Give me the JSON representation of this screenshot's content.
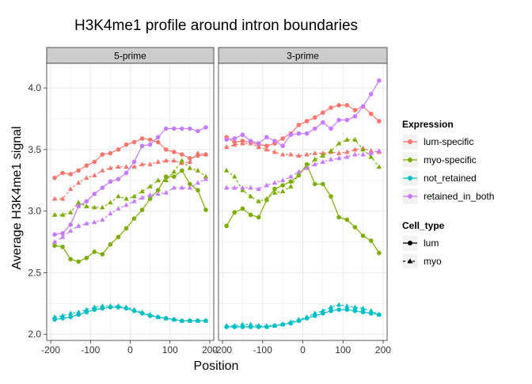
{
  "chart_data": {
    "type": "line",
    "title": "H3K4me1 profile around intron boundaries",
    "xlabel": "Position",
    "ylabel": "Average H3K4me1 signal",
    "x_range": [
      -210,
      210
    ],
    "y_range": [
      1.95,
      4.2
    ],
    "x_ticks": [
      -200,
      -100,
      0,
      100,
      200
    ],
    "x_tick_labels": [
      "-200",
      "-100",
      "0",
      "100",
      "200"
    ],
    "y_ticks": [
      2.0,
      2.5,
      3.0,
      3.5,
      4.0
    ],
    "y_tick_labels": [
      "2.0",
      "2.5",
      "3.0",
      "3.5",
      "4.0"
    ],
    "x": [
      -190,
      -170,
      -150,
      -130,
      -110,
      -90,
      -70,
      -50,
      -30,
      -10,
      10,
      30,
      50,
      70,
      90,
      110,
      130,
      150,
      170,
      190
    ],
    "panels": [
      {
        "label": "5-prime",
        "series": [
          {
            "expression": "lum-specific",
            "cell_type": "lum",
            "values": [
              3.27,
              3.31,
              3.3,
              3.33,
              3.37,
              3.4,
              3.46,
              3.47,
              3.5,
              3.54,
              3.56,
              3.59,
              3.58,
              3.56,
              3.5,
              3.48,
              3.46,
              3.43,
              3.45,
              3.46
            ]
          },
          {
            "expression": "lum-specific",
            "cell_type": "myo",
            "values": [
              3.1,
              3.1,
              3.18,
              3.23,
              3.27,
              3.29,
              3.33,
              3.35,
              3.36,
              3.36,
              3.36,
              3.38,
              3.38,
              3.4,
              3.41,
              3.41,
              3.39,
              3.4,
              3.47,
              3.46
            ]
          },
          {
            "expression": "myo-specific",
            "cell_type": "lum",
            "values": [
              2.72,
              2.71,
              2.61,
              2.59,
              2.62,
              2.67,
              2.65,
              2.73,
              2.79,
              2.86,
              2.94,
              3.01,
              3.1,
              3.17,
              3.28,
              3.28,
              3.33,
              3.22,
              3.17,
              3.01
            ]
          },
          {
            "expression": "myo-specific",
            "cell_type": "myo",
            "values": [
              2.97,
              2.97,
              2.99,
              3.07,
              3.04,
              3.03,
              3.03,
              3.07,
              3.12,
              3.1,
              3.12,
              3.16,
              3.2,
              3.25,
              3.25,
              3.32,
              3.41,
              3.35,
              3.33,
              3.28
            ]
          },
          {
            "expression": "not_retained",
            "cell_type": "lum",
            "values": [
              2.12,
              2.13,
              2.14,
              2.16,
              2.18,
              2.2,
              2.21,
              2.22,
              2.22,
              2.21,
              2.19,
              2.17,
              2.15,
              2.14,
              2.13,
              2.12,
              2.11,
              2.11,
              2.11,
              2.11
            ]
          },
          {
            "expression": "not_retained",
            "cell_type": "myo",
            "values": [
              2.14,
              2.15,
              2.17,
              2.18,
              2.2,
              2.22,
              2.23,
              2.23,
              2.23,
              2.22,
              2.2,
              2.18,
              2.16,
              2.14,
              2.13,
              2.12,
              2.11,
              2.11,
              2.11,
              2.11
            ]
          },
          {
            "expression": "retained_in_both",
            "cell_type": "lum",
            "values": [
              2.81,
              2.82,
              2.89,
              3.04,
              3.08,
              3.14,
              3.19,
              3.24,
              3.26,
              3.31,
              3.4,
              3.53,
              3.54,
              3.6,
              3.67,
              3.67,
              3.67,
              3.67,
              3.65,
              3.68
            ]
          },
          {
            "expression": "retained_in_both",
            "cell_type": "myo",
            "values": [
              2.75,
              2.79,
              2.84,
              2.88,
              2.9,
              2.91,
              2.93,
              2.98,
              3.02,
              3.05,
              3.08,
              3.11,
              3.13,
              3.14,
              3.15,
              3.19,
              3.19,
              3.19,
              3.23,
              3.26
            ]
          }
        ]
      },
      {
        "label": "3-prime",
        "series": [
          {
            "expression": "lum-specific",
            "cell_type": "lum",
            "values": [
              3.6,
              3.56,
              3.57,
              3.56,
              3.54,
              3.53,
              3.55,
              3.59,
              3.63,
              3.7,
              3.73,
              3.76,
              3.8,
              3.84,
              3.86,
              3.86,
              3.82,
              3.85,
              3.79,
              3.73
            ]
          },
          {
            "expression": "lum-specific",
            "cell_type": "myo",
            "values": [
              3.52,
              3.54,
              3.55,
              3.55,
              3.52,
              3.5,
              3.48,
              3.46,
              3.46,
              3.45,
              3.46,
              3.47,
              3.47,
              3.48,
              3.47,
              3.48,
              3.5,
              3.51,
              3.49,
              3.48
            ]
          },
          {
            "expression": "myo-specific",
            "cell_type": "lum",
            "values": [
              2.88,
              2.99,
              3.02,
              2.97,
              2.95,
              3.09,
              3.18,
              3.21,
              3.24,
              3.29,
              3.38,
              3.22,
              3.22,
              3.12,
              2.95,
              2.93,
              2.87,
              2.8,
              2.76,
              2.66
            ]
          },
          {
            "expression": "myo-specific",
            "cell_type": "myo",
            "values": [
              3.33,
              3.28,
              3.17,
              3.12,
              3.08,
              3.1,
              3.15,
              3.16,
              3.2,
              3.3,
              3.36,
              3.42,
              3.45,
              3.49,
              3.55,
              3.58,
              3.58,
              3.5,
              3.44,
              3.36
            ]
          },
          {
            "expression": "not_retained",
            "cell_type": "lum",
            "values": [
              2.06,
              2.06,
              2.06,
              2.06,
              2.06,
              2.06,
              2.07,
              2.08,
              2.09,
              2.11,
              2.13,
              2.15,
              2.17,
              2.19,
              2.2,
              2.2,
              2.19,
              2.18,
              2.17,
              2.16
            ]
          },
          {
            "expression": "not_retained",
            "cell_type": "myo",
            "values": [
              2.07,
              2.07,
              2.08,
              2.08,
              2.07,
              2.07,
              2.07,
              2.08,
              2.1,
              2.12,
              2.14,
              2.17,
              2.19,
              2.22,
              2.24,
              2.23,
              2.22,
              2.21,
              2.19,
              2.16
            ]
          },
          {
            "expression": "retained_in_both",
            "cell_type": "lum",
            "values": [
              3.58,
              3.59,
              3.62,
              3.57,
              3.55,
              3.6,
              3.57,
              3.53,
              3.62,
              3.63,
              3.63,
              3.67,
              3.72,
              3.67,
              3.74,
              3.74,
              3.77,
              3.85,
              3.95,
              4.06
            ]
          },
          {
            "expression": "retained_in_both",
            "cell_type": "myo",
            "values": [
              3.19,
              3.19,
              3.19,
              3.19,
              3.18,
              3.21,
              3.23,
              3.25,
              3.28,
              3.32,
              3.35,
              3.38,
              3.4,
              3.42,
              3.43,
              3.44,
              3.46,
              3.46,
              3.47,
              3.49
            ]
          }
        ]
      }
    ],
    "legend": {
      "placement": "right",
      "expression_title": "Expression",
      "expression": [
        {
          "label": "lum-specific",
          "color": "#F8766D"
        },
        {
          "label": "myo-specific",
          "color": "#7CAE00"
        },
        {
          "label": "not_retained",
          "color": "#00BFC4"
        },
        {
          "label": "retained_in_both",
          "color": "#C77CFF"
        }
      ],
      "cell_type_title": "Cell_type",
      "cell_type": [
        {
          "label": "lum",
          "shape": "circle",
          "line": "solid"
        },
        {
          "label": "myo",
          "shape": "triangle",
          "line": "dashed"
        }
      ]
    },
    "grid": true,
    "panel_background": "#ffffff",
    "grid_color": "#ebebeb",
    "strip_color": "#cccccc"
  }
}
